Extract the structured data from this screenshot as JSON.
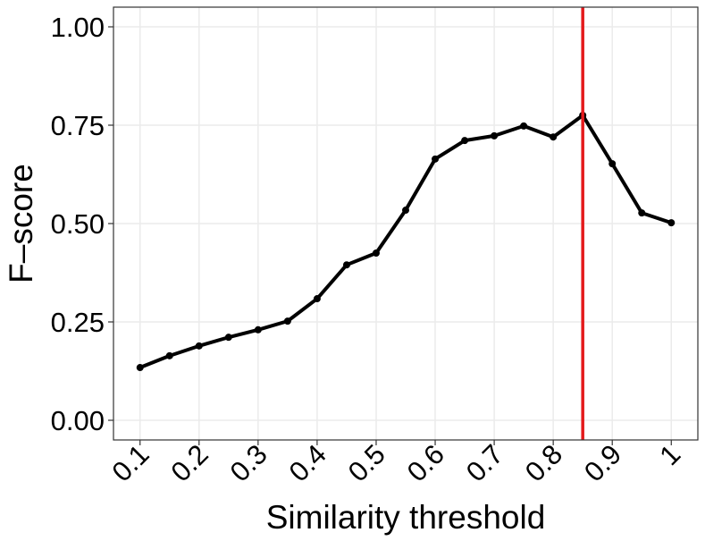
{
  "chart_data": {
    "type": "line",
    "x_label": "Similarity threshold",
    "y_label": "F–score",
    "series": [
      {
        "color": "#000000",
        "x": [
          0.1,
          0.15,
          0.2,
          0.25,
          0.3,
          0.35,
          0.4,
          0.45,
          0.5,
          0.55,
          0.6,
          0.65,
          0.7,
          0.75,
          0.8,
          0.85,
          0.9,
          0.95,
          1
        ],
        "values": [
          0.134,
          0.164,
          0.189,
          0.211,
          0.23,
          0.252,
          0.309,
          0.395,
          0.425,
          0.534,
          0.664,
          0.711,
          0.723,
          0.748,
          0.72,
          0.775,
          0.652,
          0.527,
          0.502
        ]
      }
    ],
    "vline": {
      "x": 0.85,
      "color": "#e41a1c"
    },
    "xlim": [
      0.055,
      1.045
    ],
    "xticks": [
      0.1,
      0.2,
      0.3,
      0.4,
      0.5,
      0.6,
      0.7,
      0.8,
      0.9,
      1
    ],
    "ylim": [
      -0.05,
      1.05
    ],
    "yticks": [
      {
        "value": 0,
        "label": "0.00"
      },
      {
        "value": 0.25,
        "label": "0.25"
      },
      {
        "value": 0.5,
        "label": "0.50"
      },
      {
        "value": 0.75,
        "label": "0.75"
      },
      {
        "value": 1,
        "label": "1.00"
      }
    ],
    "grid": true
  }
}
